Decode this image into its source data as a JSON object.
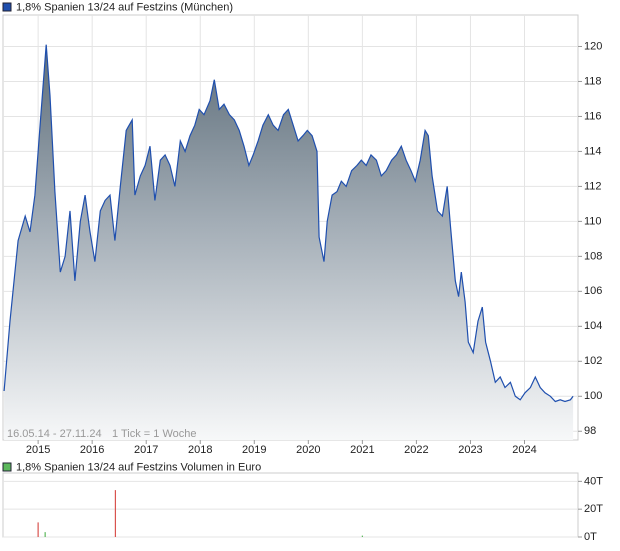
{
  "chart_data": [
    {
      "type": "area",
      "title": "1,8% Spanien 13/24 auf Festzins (München)",
      "annotations": [
        "16.05.14 - 27.11.24",
        "1 Tick = 1 Woche"
      ],
      "color": "#1f4fae",
      "grid": true,
      "x": [
        2014.37,
        2014.48,
        2014.63,
        2014.76,
        2014.85,
        2014.94,
        2015.03,
        2015.15,
        2015.22,
        2015.31,
        2015.41,
        2015.5,
        2015.59,
        2015.68,
        2015.78,
        2015.87,
        2015.96,
        2016.05,
        2016.15,
        2016.24,
        2016.33,
        2016.42,
        2016.52,
        2016.63,
        2016.74,
        2016.79,
        2016.89,
        2016.98,
        2017.07,
        2017.16,
        2017.26,
        2017.35,
        2017.44,
        2017.53,
        2017.63,
        2017.72,
        2017.81,
        2017.9,
        2017.98,
        2018.07,
        2018.18,
        2018.26,
        2018.35,
        2018.44,
        2018.54,
        2018.63,
        2018.72,
        2018.81,
        2018.9,
        2018.98,
        2019.07,
        2019.16,
        2019.26,
        2019.35,
        2019.44,
        2019.54,
        2019.63,
        2019.72,
        2019.81,
        2019.9,
        2019.98,
        2020.07,
        2020.16,
        2020.2,
        2020.29,
        2020.35,
        2020.44,
        2020.53,
        2020.61,
        2020.7,
        2020.8,
        2020.9,
        2020.98,
        2021.07,
        2021.16,
        2021.26,
        2021.35,
        2021.44,
        2021.54,
        2021.63,
        2021.72,
        2021.81,
        2021.9,
        2021.98,
        2022.07,
        2022.16,
        2022.22,
        2022.29,
        2022.39,
        2022.48,
        2022.57,
        2022.63,
        2022.72,
        2022.78,
        2022.83,
        2022.9,
        2022.96,
        2023.05,
        2023.14,
        2023.22,
        2023.28,
        2023.37,
        2023.46,
        2023.55,
        2023.64,
        2023.74,
        2023.83,
        2023.92,
        2024.01,
        2024.11,
        2024.2,
        2024.29,
        2024.38,
        2024.48,
        2024.57,
        2024.66,
        2024.75,
        2024.85,
        2024.9
      ],
      "values": [
        100.3,
        104.3,
        108.9,
        110.3,
        109.4,
        111.5,
        115.2,
        120.1,
        117.2,
        111.7,
        107.1,
        108,
        110.6,
        106.6,
        110,
        111.5,
        109.4,
        107.7,
        110.6,
        111.2,
        111.5,
        108.9,
        112,
        115.2,
        115.8,
        111.5,
        112.6,
        113.2,
        114.3,
        111.2,
        113.5,
        113.8,
        113.2,
        112,
        114.6,
        114,
        114.9,
        115.5,
        116.4,
        116.1,
        116.9,
        118.1,
        116.4,
        116.7,
        116.1,
        115.8,
        115.2,
        114.3,
        113.2,
        113.8,
        114.6,
        115.5,
        116.1,
        115.5,
        115.2,
        116.1,
        116.4,
        115.5,
        114.6,
        114.9,
        115.2,
        114.9,
        114,
        109.1,
        107.7,
        110,
        111.5,
        111.7,
        112.3,
        112,
        112.9,
        113.2,
        113.5,
        113.2,
        113.8,
        113.5,
        112.6,
        112.9,
        113.5,
        113.8,
        114.3,
        113.5,
        112.9,
        112.3,
        113.5,
        115.2,
        114.9,
        112.6,
        110.6,
        110.3,
        112,
        109.7,
        106.6,
        105.7,
        107.1,
        105.4,
        103.1,
        102.5,
        104.3,
        105.1,
        103.1,
        102,
        100.8,
        101.1,
        100.5,
        100.8,
        100,
        99.8,
        100.2,
        100.5,
        101.1,
        100.5,
        100.2,
        100,
        99.7,
        99.8,
        99.7,
        99.8,
        100
      ],
      "xlim": [
        2014.35,
        2024.99
      ],
      "xticks": [
        2015,
        2016,
        2017,
        2018,
        2019,
        2020,
        2021,
        2022,
        2023,
        2024
      ],
      "ylim": [
        97.5,
        121.8
      ],
      "yticks": [
        98,
        100,
        102,
        104,
        106,
        108,
        110,
        112,
        114,
        116,
        118,
        120
      ]
    },
    {
      "type": "bar",
      "title": "1,8% Spanien 13/24 auf Festzins Volumen in Euro",
      "color": "#5cb85c",
      "x": [
        2015.0,
        2015.13,
        2016.43,
        2021.0
      ],
      "values": [
        10.5,
        3.5,
        33.7,
        1
      ],
      "colors": [
        "#d9534f",
        "#5cb85c",
        "#d9534f",
        "#5cb85c"
      ],
      "xlim": [
        2014.35,
        2024.99
      ],
      "ylim": [
        0,
        46
      ],
      "yticks": [
        {
          "value": 0,
          "label": "0T"
        },
        {
          "value": 20,
          "label": "20T"
        },
        {
          "value": 40,
          "label": "40T"
        }
      ]
    }
  ]
}
